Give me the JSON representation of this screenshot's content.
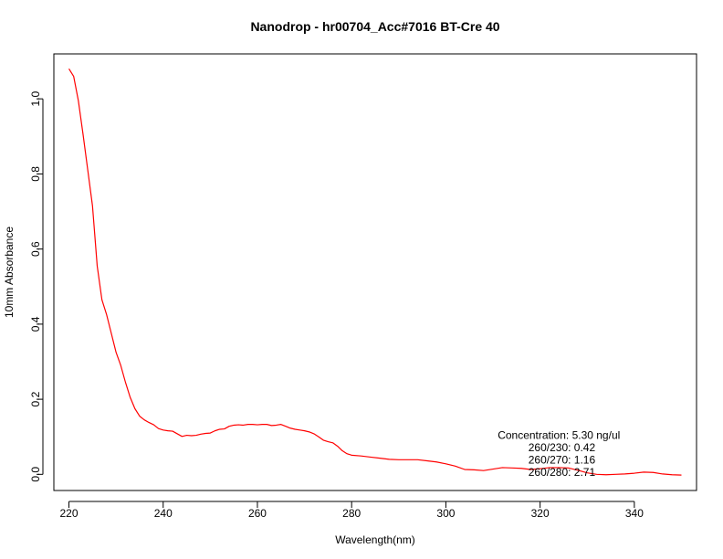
{
  "chart_data": {
    "type": "line",
    "title": "Nanodrop - hr00704_Acc#7016 BT-Cre 40",
    "xlabel": "Wavelength(nm)",
    "ylabel": "10mm Absorbance",
    "xlim": [
      216.8,
      353.2
    ],
    "ylim": [
      -0.043,
      1.1197
    ],
    "xticks": [
      220,
      240,
      260,
      280,
      300,
      320,
      340
    ],
    "xtick_labels": [
      "220",
      "240",
      "260",
      "280",
      "300",
      "320",
      "340"
    ],
    "yticks": [
      0,
      0.2,
      0.4,
      0.6,
      0.8,
      1
    ],
    "ytick_labels": [
      "0.0",
      "0.2",
      "0.4",
      "0.6",
      "0.8",
      "1.0"
    ],
    "grid": false,
    "line_color": "#ff0000",
    "series": [
      {
        "x": [
          220,
          221,
          222,
          223,
          224,
          225,
          226,
          227,
          228,
          229,
          230,
          231,
          232,
          233,
          234,
          235,
          236,
          237,
          238,
          239,
          240,
          241,
          242,
          243,
          244,
          245,
          246,
          247,
          248,
          249,
          250,
          251,
          252,
          253,
          254,
          255,
          256,
          257,
          258,
          259,
          260,
          261,
          262,
          263,
          264,
          265,
          266,
          267,
          268,
          269,
          270,
          271,
          272,
          273,
          274,
          275,
          276,
          277,
          278,
          279,
          280,
          282,
          284,
          286,
          288,
          290,
          292,
          294,
          296,
          298,
          300,
          302,
          304,
          306,
          308,
          310,
          312,
          314,
          316,
          318,
          320,
          322,
          324,
          326,
          328,
          330,
          332,
          334,
          336,
          338,
          340,
          342,
          344,
          346,
          348,
          350
        ],
        "y": [
          1.08,
          1.06,
          0.995,
          0.905,
          0.81,
          0.715,
          0.555,
          0.465,
          0.425,
          0.375,
          0.325,
          0.29,
          0.245,
          0.205,
          0.175,
          0.155,
          0.145,
          0.138,
          0.132,
          0.122,
          0.118,
          0.116,
          0.115,
          0.108,
          0.101,
          0.104,
          0.103,
          0.104,
          0.107,
          0.109,
          0.11,
          0.116,
          0.12,
          0.121,
          0.128,
          0.131,
          0.132,
          0.131,
          0.133,
          0.133,
          0.132,
          0.133,
          0.133,
          0.13,
          0.131,
          0.133,
          0.128,
          0.123,
          0.12,
          0.118,
          0.116,
          0.113,
          0.108,
          0.1,
          0.091,
          0.087,
          0.084,
          0.075,
          0.063,
          0.055,
          0.051,
          0.049,
          0.046,
          0.043,
          0.04,
          0.039,
          0.039,
          0.039,
          0.036,
          0.033,
          0.028,
          0.022,
          0.013,
          0.012,
          0.01,
          0.014,
          0.018,
          0.017,
          0.016,
          0.013,
          0.015,
          0.018,
          0.018,
          0.017,
          0.011,
          0.004,
          0.0,
          -0.001,
          0.0,
          0.001,
          0.003,
          0.006,
          0.005,
          0.001,
          -0.001,
          -0.002
        ]
      }
    ],
    "annotations": [
      {
        "text": "Concentration: 5.30 ng/ul",
        "x": 311,
        "y": 0.094
      },
      {
        "text": "260/230: 0.42",
        "x": 317.5,
        "y": 0.062
      },
      {
        "text": "260/270: 1.16",
        "x": 317.5,
        "y": 0.029
      },
      {
        "text": "260/280: 2.71",
        "x": 317.5,
        "y": -0.004
      }
    ]
  }
}
